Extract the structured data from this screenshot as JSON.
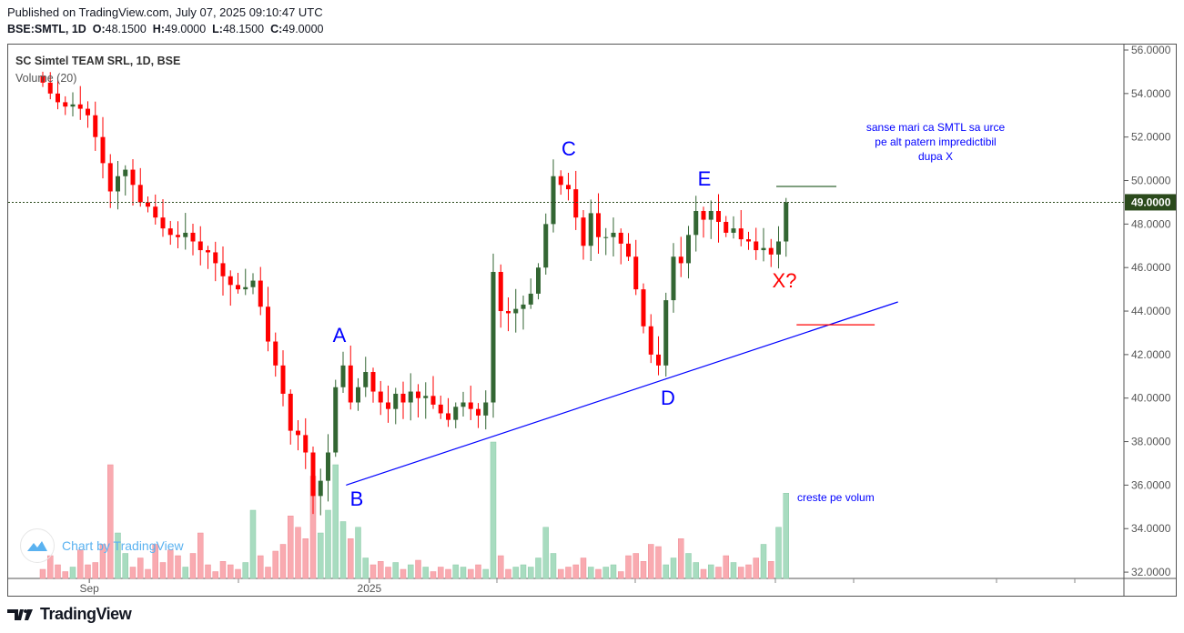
{
  "header": {
    "published": "Published on TradingView.com, July 07, 2025 09:10:47 UTC",
    "symbol": "BSE:SMTL, 1D",
    "o_label": "O:",
    "o": "48.1500",
    "h_label": "H:",
    "h": "49.0000",
    "l_label": "L:",
    "l": "48.1500",
    "c_label": "C:",
    "c": "49.0000"
  },
  "legend": {
    "title": "SC Simtel TEAM SRL, 1D, BSE",
    "volume": "Volume (20)"
  },
  "watermark": "Chart by TradingView",
  "footer": "TradingView",
  "colors": {
    "up": "#336633",
    "down": "#ff0000",
    "vol_up": "#a8dcc0",
    "vol_down": "#f9aab0",
    "annotation": "#0000ff",
    "price_tag": "#2b4a1c"
  },
  "chart_data": {
    "type": "candlestick",
    "ylim": [
      32,
      56
    ],
    "yticks": [
      "32.0000",
      "34.0000",
      "36.0000",
      "38.0000",
      "40.0000",
      "42.0000",
      "44.0000",
      "46.0000",
      "48.0000",
      "50.0000",
      "52.0000",
      "54.0000",
      "56.0000"
    ],
    "xticks": [
      {
        "bar": 6.2,
        "label": "Sep"
      },
      {
        "bar": 43.5,
        "label": "2025"
      }
    ],
    "last_price": "49.0000",
    "close": [
      54.5,
      54,
      53.6,
      53.4,
      53.5,
      53.3,
      53,
      52,
      50.8,
      49.5,
      50.2,
      50.5,
      49.8,
      49,
      48.8,
      48.3,
      47.8,
      47.5,
      47.4,
      47.6,
      47.2,
      46.8,
      46.7,
      46.2,
      45.6,
      45.2,
      45,
      45.1,
      45.4,
      44.2,
      42.6,
      41.5,
      40.2,
      38.5,
      38.3,
      37.5,
      35.5,
      36.2,
      37.5,
      40.5,
      41.5,
      39.8,
      40.5,
      41.2,
      40.3,
      39.8,
      39.5,
      40.2,
      39.8,
      40.3,
      40,
      40.1,
      39.7,
      39.3,
      39,
      39.6,
      39.8,
      39.5,
      39.2,
      39.8,
      45.8,
      44,
      43.9,
      44.1,
      44.3,
      44.8,
      46,
      48,
      50.2,
      49.8,
      49.6,
      48.3,
      47,
      48.5,
      47.4,
      47.4,
      47.6,
      47.1,
      46.5,
      45,
      43.3,
      42,
      41.5,
      44.5,
      46.5,
      46.2,
      47.5,
      48.6,
      48.2,
      48.6,
      48.1,
      47.6,
      47.8,
      47.3,
      47.2,
      46.8,
      46.9,
      46.6,
      47.2,
      49
    ],
    "volume": [
      8,
      20,
      12,
      6,
      10,
      25,
      12,
      14,
      30,
      100,
      40,
      22,
      10,
      18,
      8,
      30,
      14,
      25,
      20,
      10,
      22,
      40,
      12,
      6,
      15,
      12,
      8,
      14,
      60,
      20,
      10,
      24,
      30,
      55,
      45,
      35,
      90,
      40,
      60,
      100,
      50,
      35,
      45,
      18,
      12,
      15,
      10,
      14,
      8,
      12,
      16,
      10,
      6,
      10,
      8,
      12,
      10,
      8,
      12,
      8,
      120,
      20,
      8,
      10,
      12,
      10,
      18,
      45,
      22,
      8,
      10,
      12,
      18,
      10,
      8,
      10,
      12,
      6,
      20,
      22,
      15,
      30,
      28,
      12,
      18,
      35,
      22,
      14,
      8,
      12,
      10,
      20,
      14,
      10,
      12,
      18,
      30,
      15,
      45,
      75
    ],
    "annotations": [
      {
        "text": "A",
        "color": "#0000ff"
      },
      {
        "text": "B",
        "color": "#0000ff"
      },
      {
        "text": "C",
        "color": "#0000ff"
      },
      {
        "text": "D",
        "color": "#0000ff"
      },
      {
        "text": "E",
        "color": "#0000ff"
      },
      {
        "text": "X?",
        "color": "#ff0000"
      },
      {
        "text": "creste pe volum",
        "color": "#0000ff"
      }
    ],
    "note_lines": [
      "sanse mari ca SMTL sa urce",
      "pe alt patern impredictibil",
      "dupa X"
    ],
    "trendline": {
      "from": {
        "bar": 40.4,
        "price": 36.0
      },
      "to": {
        "bar": 113.9,
        "price": 44.42
      },
      "color": "#0000ff"
    },
    "hlines": [
      {
        "from_bar": 100.4,
        "to_bar": 110.8,
        "price": 43.37,
        "color": "#ff0000"
      },
      {
        "from_bar": 97.7,
        "to_bar": 105.7,
        "price": 49.73,
        "color": "#336633"
      }
    ]
  }
}
